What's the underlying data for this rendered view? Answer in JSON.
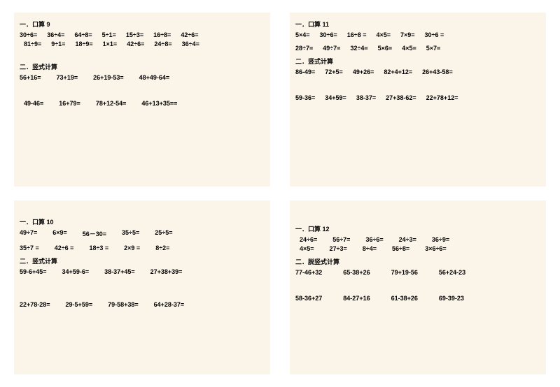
{
  "sections": [
    {
      "mental_title": "一．口算 9",
      "mental_rows": [
        [
          "30÷6=",
          "36÷4=",
          "64÷8=",
          "5÷1=",
          "15÷3=",
          "16÷8=",
          "42÷6="
        ],
        [
          "81÷9=",
          "9÷1=",
          "18÷9=",
          "1×1=",
          "42÷6=",
          "24÷8=",
          "36÷4="
        ]
      ],
      "col_title": "二．竖式计算",
      "col_rows": [
        [
          "56+16=",
          "73+19=",
          "26+19-53=",
          "48+49-64="
        ],
        [
          "49-46=",
          "16+79=",
          "78+12-54=",
          "46+13+35=="
        ]
      ]
    },
    {
      "mental_title": "一．口算 11",
      "mental_rows": [
        [
          "5×4=",
          "30÷6=",
          "16÷8 =",
          "4×5=",
          "7×9=",
          "30÷6 ="
        ],
        [
          "28÷7=",
          "49÷7=",
          "32÷4=",
          "5×6=",
          "4×5=",
          "5×7="
        ]
      ],
      "col_title": "二．竖式计算",
      "col_rows": [
        [
          "86-49=",
          "72+5=",
          "49+26=",
          "82+4+12=",
          "26+43-58="
        ],
        [
          "59-36=",
          "34+59=",
          "38-37=",
          "27+38-62=",
          "22+78+12="
        ]
      ]
    },
    {
      "mental_title": "一．口算 10",
      "mental_rows": [
        [
          "49÷7=",
          "6×9=",
          "56－30=",
          "35÷5=",
          "25÷5="
        ],
        [
          "35÷7 =",
          "42÷6 =",
          "18÷3 =",
          "2×9 =",
          "8÷2="
        ]
      ],
      "col_title": "二．竖式计算",
      "col_rows": [
        [
          "59-6+45=",
          "34+59-6=",
          "38-37+45=",
          "27+38+39="
        ],
        [
          "22+78-28=",
          "29-5+59=",
          "79-58+38=",
          "64+28-37="
        ]
      ]
    },
    {
      "mental_title": "一．口算 12",
      "mental_rows": [
        [
          "24÷6=",
          "56÷7=",
          "36÷6=",
          "24÷3=",
          "36÷9="
        ],
        [
          "4×5=",
          "27÷3=",
          "8÷4=",
          "56÷8=",
          "3×6÷6="
        ]
      ],
      "col_title": "二．脱竖式计算",
      "col_rows": [
        [
          "77-46+32",
          "65-38+26",
          "79+19-56",
          "56+24-23"
        ],
        [
          "58-36+27",
          "84-27+16",
          "61-38+26",
          "69-39-23"
        ]
      ]
    }
  ]
}
